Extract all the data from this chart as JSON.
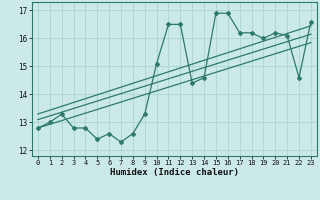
{
  "title": "",
  "xlabel": "Humidex (Indice chaleur)",
  "xlim": [
    -0.5,
    23.5
  ],
  "ylim": [
    11.8,
    17.3
  ],
  "yticks": [
    12,
    13,
    14,
    15,
    16,
    17
  ],
  "xticks": [
    0,
    1,
    2,
    3,
    4,
    5,
    6,
    7,
    8,
    9,
    10,
    11,
    12,
    13,
    14,
    15,
    16,
    17,
    18,
    19,
    20,
    21,
    22,
    23
  ],
  "bg_color": "#cce9e9",
  "line_color": "#2d7a6a",
  "grid_color": "#aad4d4",
  "main_x": [
    0,
    1,
    2,
    3,
    4,
    5,
    6,
    7,
    8,
    9,
    10,
    11,
    12,
    13,
    14,
    15,
    16,
    17,
    18,
    19,
    20,
    21,
    22,
    23
  ],
  "main_y": [
    12.8,
    13.0,
    13.3,
    12.8,
    12.8,
    12.4,
    12.6,
    12.3,
    12.6,
    13.3,
    15.1,
    16.5,
    16.5,
    14.4,
    14.6,
    16.9,
    16.9,
    16.2,
    16.2,
    16.0,
    16.2,
    16.1,
    14.6,
    16.6
  ],
  "line1_x": [
    0,
    23
  ],
  "line1_y": [
    12.8,
    15.85
  ],
  "line2_x": [
    0,
    23
  ],
  "line2_y": [
    13.1,
    16.15
  ],
  "line3_x": [
    0,
    23
  ],
  "line3_y": [
    13.3,
    16.45
  ]
}
